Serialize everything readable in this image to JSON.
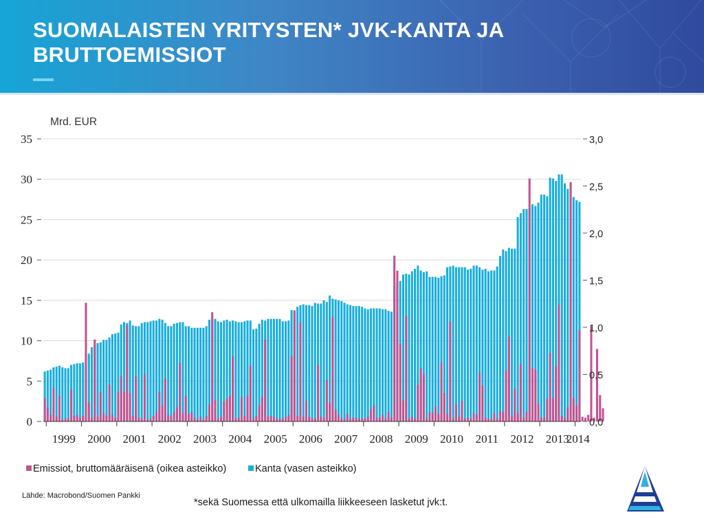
{
  "slide": {
    "title": "SUOMALAISTEN YRITYSTEN* JVK-KANTA JA BRUTTOEMISSIOT",
    "source": "Lähde: Macrobond/Suomen Pankki",
    "footnote": "*sekä Suomessa että ulkomailla liikkeeseen lasketut jvk:t.",
    "colors": {
      "banner_start": "#16a5d6",
      "banner_end": "#2f4a9e",
      "title": "#ffffff",
      "accent_rule": "#7fd3f3"
    },
    "logo_icon": "triangle-sail-logo-icon"
  },
  "chart_data": {
    "type": "bar",
    "unit_label": "Mrd. EUR",
    "x_ticks": [
      "1999",
      "2000",
      "2001",
      "2002",
      "2003",
      "2004",
      "2005",
      "2006",
      "2007",
      "2008",
      "2009",
      "2010",
      "2011",
      "2012",
      "2013",
      "2014"
    ],
    "left_axis": {
      "ticks": [
        "0",
        "5",
        "10",
        "15",
        "20",
        "25",
        "30",
        "35"
      ],
      "ylim": [
        0,
        35
      ]
    },
    "right_axis": {
      "ticks": [
        "0,0",
        "0,5",
        "1,0",
        "1,5",
        "2,0",
        "2,5",
        "3,0"
      ],
      "ylim": [
        0,
        3.0
      ]
    },
    "frequency": "monthly",
    "start": "1998-12",
    "series": [
      {
        "name": "Kanta (vasen asteikko)",
        "axis": "left",
        "color": "#1aaedb",
        "values": [
          6.2,
          6.3,
          6.4,
          6.7,
          6.8,
          6.9,
          6.7,
          6.6,
          6.6,
          7,
          7.1,
          7.2,
          7.2,
          7.3,
          8.4,
          8.4,
          9.2,
          9.5,
          9.7,
          9.8,
          10.1,
          10.1,
          10.4,
          10.8,
          10.9,
          11,
          12,
          12.3,
          12.2,
          12.5,
          11.9,
          11.8,
          11.8,
          12.2,
          12.3,
          12.3,
          12.4,
          12.5,
          12.5,
          12.7,
          12.6,
          12.2,
          11.8,
          11.8,
          12.1,
          12.2,
          12.3,
          12.3,
          11.8,
          11.8,
          11.6,
          11.6,
          11.6,
          11.6,
          11.6,
          11.8,
          12.6,
          12.8,
          12.7,
          12.4,
          12.3,
          12.5,
          12.6,
          12.4,
          12.5,
          12.4,
          12.3,
          12.3,
          12.4,
          12.5,
          12.5,
          11.4,
          11.5,
          12.1,
          12.6,
          12.5,
          12.7,
          12.7,
          12.7,
          12.7,
          12.7,
          12.4,
          12.4,
          12.5,
          13.8,
          13.6,
          14.2,
          14.4,
          14.5,
          14.4,
          14.4,
          14.3,
          14.7,
          14.6,
          14.6,
          15,
          14.8,
          15.6,
          15.2,
          15.1,
          15,
          14.9,
          14.7,
          14.5,
          14.4,
          14.3,
          14.3,
          14.3,
          14.2,
          14,
          13.9,
          14,
          14,
          14,
          14,
          13.9,
          13.9,
          13.7,
          13.6,
          16.9,
          17.3,
          17.4,
          18.2,
          18.3,
          18.2,
          18.6,
          18.9,
          19.3,
          18.7,
          18.5,
          18.6,
          17.9,
          17.9,
          17.9,
          17.8,
          18,
          18.1,
          19.1,
          19.2,
          19.3,
          19.1,
          19.1,
          19.1,
          19.1,
          18.8,
          18.9,
          19.3,
          19.3,
          19.1,
          18.8,
          18.9,
          18.6,
          18.7,
          18.7,
          19.2,
          20.5,
          21.3,
          21.1,
          21.5,
          21.4,
          21.4,
          25.3,
          25.8,
          26.3,
          26.3,
          26.4,
          26.9,
          26.7,
          27.1,
          28.1,
          28.1,
          27.9,
          30.2,
          30.1,
          29.8,
          30.6,
          30.6,
          29.5,
          28.8,
          27.4,
          27.8,
          27.4,
          27.2
        ]
      },
      {
        "name": "Emissiot, bruttomääräisenä (oikea asteikko)",
        "axis": "right",
        "color": "#c2538f",
        "values": [
          0.25,
          0.15,
          0.07,
          0.36,
          0.05,
          0.27,
          0.02,
          0.03,
          0.03,
          0.34,
          0.06,
          0.07,
          0.04,
          0.06,
          1.26,
          0.2,
          0.04,
          0.87,
          0.05,
          0.31,
          0.09,
          0.06,
          0.39,
          0.07,
          0.04,
          0.31,
          0.48,
          0.31,
          1.02,
          0.3,
          0.06,
          0.48,
          0.04,
          0.03,
          0.5,
          0.02,
          0.03,
          0.06,
          0.1,
          0.31,
          0.17,
          0.46,
          0.07,
          0.05,
          0.1,
          0.15,
          0.62,
          0.09,
          0.27,
          0.08,
          0.1,
          0.04,
          0.02,
          0.05,
          0.02,
          0.06,
          0.18,
          1.16,
          0.23,
          0.03,
          0.05,
          0.21,
          0.24,
          0.27,
          0.69,
          0.03,
          0.04,
          0.26,
          0.06,
          0.27,
          0.59,
          0.03,
          0.06,
          0.17,
          0.26,
          0.87,
          0.05,
          0.06,
          0.05,
          0.03,
          0.03,
          0.03,
          0.05,
          0.07,
          0.69,
          1.18,
          0.06,
          1.05,
          0.05,
          0.22,
          0.05,
          0.04,
          0.03,
          0.6,
          0.05,
          0.04,
          0.44,
          0.2,
          1.11,
          0.12,
          0.07,
          0.03,
          0.03,
          0.08,
          0.03,
          0.04,
          0.04,
          0.03,
          0.03,
          0.03,
          0.05,
          0.13,
          0.17,
          0.04,
          0.04,
          0.07,
          0.03,
          0.1,
          0.04,
          1.76,
          1.6,
          0.82,
          0.22,
          1.12,
          0.03,
          0.05,
          0.03,
          0.39,
          0.57,
          0.5,
          0.03,
          0.1,
          0.09,
          0.16,
          0.08,
          0.63,
          0.3,
          0.08,
          1.06,
          0.03,
          0.18,
          0.05,
          0.22,
          0.03,
          0.04,
          0.03,
          0.09,
          0.07,
          0.52,
          0.38,
          0.04,
          0.03,
          0.03,
          0.09,
          0.03,
          0.11,
          0.1,
          0.54,
          0.9,
          0.06,
          0.35,
          0.09,
          0.61,
          0.04,
          0.1,
          2.58,
          0.57,
          0.55,
          0.19,
          0.04,
          0.04,
          0.24,
          0.73,
          0.25,
          0.59,
          1.24,
          0.06,
          0.03,
          0.15,
          2.54,
          0.25,
          0.17,
          0.97,
          0.05,
          0.04,
          0.07,
          1.01,
          0.04,
          0.77,
          0.28,
          0.14
        ]
      }
    ]
  }
}
